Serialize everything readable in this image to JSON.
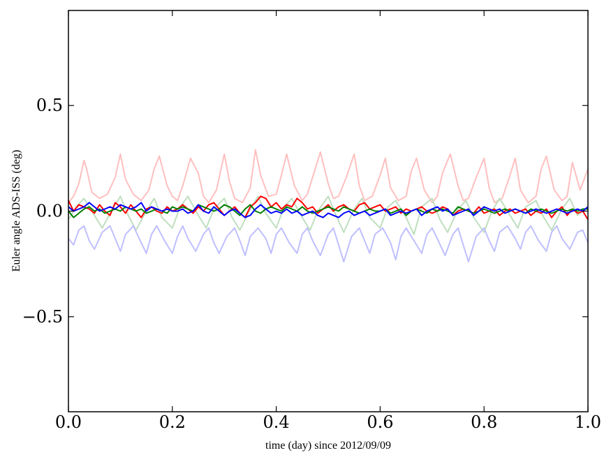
{
  "chart_data": {
    "type": "line",
    "title": "",
    "xlabel": "time (day) since 2012/09/09",
    "ylabel": "Euler angle ADS-ISS (deg)",
    "xlim": [
      0.0,
      1.0
    ],
    "ylim": [
      -0.95,
      0.95
    ],
    "xticks": [
      0.0,
      0.2,
      0.4,
      0.6,
      0.8,
      1.0
    ],
    "xtick_labels": [
      "0.0",
      "0.2",
      "0.4",
      "0.6",
      "0.8",
      "1.0"
    ],
    "yticks": [
      0.5,
      0.0,
      -0.5
    ],
    "ytick_labels": [
      "0.5",
      "0.0",
      "−0.5"
    ],
    "grid": false,
    "legend": "none",
    "series": [
      {
        "color": "#ffbfbf",
        "faded": true,
        "x": [
          0.0,
          0.01,
          0.02,
          0.03,
          0.035,
          0.045,
          0.06,
          0.075,
          0.09,
          0.1,
          0.11,
          0.125,
          0.14,
          0.155,
          0.165,
          0.175,
          0.19,
          0.2,
          0.21,
          0.22,
          0.235,
          0.25,
          0.26,
          0.27,
          0.285,
          0.3,
          0.31,
          0.32,
          0.335,
          0.35,
          0.36,
          0.37,
          0.385,
          0.4,
          0.41,
          0.42,
          0.435,
          0.45,
          0.46,
          0.47,
          0.485,
          0.5,
          0.51,
          0.52,
          0.535,
          0.55,
          0.56,
          0.57,
          0.585,
          0.6,
          0.61,
          0.62,
          0.635,
          0.65,
          0.66,
          0.67,
          0.685,
          0.7,
          0.71,
          0.72,
          0.735,
          0.75,
          0.76,
          0.77,
          0.785,
          0.8,
          0.81,
          0.82,
          0.835,
          0.85,
          0.86,
          0.87,
          0.885,
          0.9,
          0.91,
          0.92,
          0.935,
          0.95,
          0.96,
          0.97,
          0.985,
          1.0
        ],
        "y": [
          0.04,
          0.07,
          0.13,
          0.24,
          0.2,
          0.09,
          0.06,
          0.08,
          0.16,
          0.27,
          0.15,
          0.08,
          0.05,
          0.1,
          0.2,
          0.26,
          0.12,
          0.07,
          0.05,
          0.12,
          0.25,
          0.18,
          0.07,
          0.04,
          0.1,
          0.27,
          0.14,
          0.06,
          0.04,
          0.11,
          0.29,
          0.17,
          0.07,
          0.08,
          0.17,
          0.27,
          0.12,
          0.05,
          0.08,
          0.16,
          0.28,
          0.13,
          0.06,
          0.07,
          0.16,
          0.27,
          0.12,
          0.05,
          0.07,
          0.17,
          0.25,
          0.11,
          0.05,
          0.07,
          0.19,
          0.25,
          0.1,
          0.04,
          0.07,
          0.18,
          0.27,
          0.12,
          0.05,
          0.06,
          0.16,
          0.25,
          0.11,
          0.04,
          0.06,
          0.17,
          0.25,
          0.1,
          0.04,
          0.07,
          0.2,
          0.26,
          0.1,
          0.05,
          0.07,
          0.23,
          0.1,
          0.2
        ]
      },
      {
        "color": "#bfdfbf",
        "faded": true,
        "x": [
          0.0,
          0.015,
          0.03,
          0.05,
          0.065,
          0.085,
          0.1,
          0.115,
          0.13,
          0.15,
          0.165,
          0.18,
          0.2,
          0.215,
          0.23,
          0.25,
          0.265,
          0.28,
          0.3,
          0.315,
          0.33,
          0.35,
          0.365,
          0.38,
          0.4,
          0.415,
          0.43,
          0.45,
          0.465,
          0.48,
          0.5,
          0.515,
          0.53,
          0.55,
          0.565,
          0.58,
          0.6,
          0.615,
          0.63,
          0.65,
          0.665,
          0.68,
          0.7,
          0.715,
          0.73,
          0.75,
          0.765,
          0.78,
          0.8,
          0.815,
          0.83,
          0.85,
          0.865,
          0.88,
          0.9,
          0.915,
          0.93,
          0.95,
          0.965,
          0.98,
          1.0
        ],
        "y": [
          -0.04,
          0.02,
          0.06,
          -0.02,
          -0.08,
          0.01,
          0.07,
          -0.02,
          -0.09,
          0.0,
          0.06,
          -0.03,
          -0.08,
          0.02,
          0.07,
          -0.02,
          -0.08,
          0.01,
          0.06,
          -0.03,
          -0.09,
          0.01,
          0.07,
          -0.01,
          -0.08,
          0.02,
          0.06,
          -0.03,
          -0.09,
          0.0,
          0.07,
          -0.02,
          -0.1,
          0.01,
          0.06,
          -0.03,
          -0.08,
          0.02,
          0.05,
          -0.03,
          -0.11,
          0.02,
          0.06,
          -0.04,
          -0.1,
          0.01,
          0.05,
          -0.03,
          -0.1,
          0.0,
          0.06,
          -0.02,
          -0.08,
          0.02,
          0.05,
          -0.03,
          -0.09,
          0.01,
          0.06,
          -0.02,
          0.02
        ]
      },
      {
        "color": "#bfbfff",
        "faded": true,
        "x": [
          0.0,
          0.01,
          0.02,
          0.03,
          0.04,
          0.05,
          0.065,
          0.08,
          0.09,
          0.1,
          0.11,
          0.125,
          0.14,
          0.15,
          0.16,
          0.17,
          0.185,
          0.2,
          0.21,
          0.22,
          0.23,
          0.245,
          0.26,
          0.27,
          0.28,
          0.29,
          0.305,
          0.32,
          0.33,
          0.34,
          0.35,
          0.365,
          0.38,
          0.39,
          0.4,
          0.41,
          0.425,
          0.44,
          0.45,
          0.46,
          0.47,
          0.485,
          0.5,
          0.51,
          0.52,
          0.53,
          0.545,
          0.56,
          0.57,
          0.58,
          0.59,
          0.605,
          0.62,
          0.63,
          0.64,
          0.65,
          0.665,
          0.68,
          0.69,
          0.7,
          0.71,
          0.725,
          0.74,
          0.75,
          0.76,
          0.77,
          0.785,
          0.8,
          0.81,
          0.82,
          0.83,
          0.845,
          0.86,
          0.87,
          0.88,
          0.89,
          0.905,
          0.92,
          0.93,
          0.94,
          0.95,
          0.965,
          0.98,
          0.99,
          1.0
        ],
        "y": [
          -0.13,
          -0.16,
          -0.09,
          -0.07,
          -0.14,
          -0.18,
          -0.1,
          -0.07,
          -0.13,
          -0.19,
          -0.11,
          -0.07,
          -0.15,
          -0.2,
          -0.11,
          -0.07,
          -0.14,
          -0.2,
          -0.12,
          -0.07,
          -0.13,
          -0.19,
          -0.11,
          -0.08,
          -0.15,
          -0.2,
          -0.12,
          -0.08,
          -0.14,
          -0.21,
          -0.12,
          -0.08,
          -0.13,
          -0.2,
          -0.11,
          -0.08,
          -0.15,
          -0.2,
          -0.11,
          -0.08,
          -0.14,
          -0.21,
          -0.11,
          -0.08,
          -0.16,
          -0.24,
          -0.12,
          -0.08,
          -0.14,
          -0.2,
          -0.11,
          -0.08,
          -0.15,
          -0.23,
          -0.12,
          -0.08,
          -0.14,
          -0.2,
          -0.11,
          -0.08,
          -0.13,
          -0.21,
          -0.11,
          -0.08,
          -0.16,
          -0.24,
          -0.12,
          -0.08,
          -0.14,
          -0.19,
          -0.1,
          -0.07,
          -0.13,
          -0.18,
          -0.1,
          -0.07,
          -0.14,
          -0.19,
          -0.1,
          -0.07,
          -0.13,
          -0.18,
          -0.1,
          -0.09,
          -0.15
        ]
      },
      {
        "color": "#ff0000",
        "faded": false,
        "x": [
          0.0,
          0.01,
          0.02,
          0.03,
          0.04,
          0.05,
          0.06,
          0.07,
          0.08,
          0.09,
          0.1,
          0.11,
          0.12,
          0.13,
          0.14,
          0.15,
          0.16,
          0.17,
          0.18,
          0.19,
          0.2,
          0.21,
          0.22,
          0.23,
          0.24,
          0.25,
          0.26,
          0.27,
          0.28,
          0.29,
          0.3,
          0.31,
          0.32,
          0.33,
          0.34,
          0.35,
          0.36,
          0.37,
          0.38,
          0.39,
          0.4,
          0.41,
          0.42,
          0.43,
          0.44,
          0.45,
          0.46,
          0.47,
          0.48,
          0.49,
          0.5,
          0.51,
          0.52,
          0.53,
          0.54,
          0.55,
          0.56,
          0.57,
          0.58,
          0.59,
          0.6,
          0.61,
          0.62,
          0.63,
          0.64,
          0.65,
          0.66,
          0.67,
          0.68,
          0.69,
          0.7,
          0.71,
          0.72,
          0.73,
          0.74,
          0.75,
          0.76,
          0.77,
          0.78,
          0.79,
          0.8,
          0.81,
          0.82,
          0.83,
          0.84,
          0.85,
          0.86,
          0.87,
          0.88,
          0.89,
          0.9,
          0.91,
          0.92,
          0.93,
          0.94,
          0.95,
          0.96,
          0.97,
          0.98,
          0.99,
          1.0
        ],
        "y": [
          0.05,
          0.0,
          0.03,
          0.02,
          0.01,
          -0.01,
          0.03,
          0.0,
          -0.02,
          0.04,
          0.02,
          -0.01,
          0.03,
          0.0,
          -0.03,
          0.01,
          0.02,
          0.0,
          -0.01,
          0.02,
          0.0,
          0.01,
          0.03,
          0.01,
          -0.01,
          0.02,
          0.0,
          0.03,
          0.04,
          0.01,
          -0.02,
          0.0,
          0.02,
          -0.01,
          -0.03,
          0.02,
          0.04,
          0.07,
          0.06,
          0.02,
          0.04,
          0.01,
          0.03,
          0.02,
          0.06,
          0.04,
          0.01,
          0.02,
          -0.01,
          0.01,
          0.03,
          0.0,
          0.02,
          0.03,
          0.01,
          0.0,
          0.03,
          0.04,
          0.01,
          0.02,
          0.03,
          0.0,
          0.01,
          0.02,
          -0.01,
          0.01,
          0.0,
          0.01,
          0.02,
          0.0,
          -0.01,
          0.0,
          0.02,
          0.01,
          -0.02,
          0.0,
          0.01,
          0.0,
          -0.01,
          0.02,
          -0.01,
          0.0,
          0.01,
          -0.02,
          0.0,
          0.01,
          -0.01,
          0.0,
          0.01,
          -0.02,
          0.0,
          -0.01,
          0.01,
          -0.03,
          0.0,
          0.02,
          -0.02,
          0.01,
          -0.01,
          0.0,
          -0.04
        ]
      },
      {
        "color": "#007f00",
        "faded": false,
        "x": [
          0.0,
          0.01,
          0.02,
          0.03,
          0.04,
          0.05,
          0.06,
          0.07,
          0.08,
          0.09,
          0.1,
          0.11,
          0.12,
          0.13,
          0.14,
          0.15,
          0.16,
          0.17,
          0.18,
          0.19,
          0.2,
          0.21,
          0.22,
          0.23,
          0.24,
          0.25,
          0.26,
          0.27,
          0.28,
          0.29,
          0.3,
          0.31,
          0.32,
          0.33,
          0.34,
          0.35,
          0.36,
          0.37,
          0.38,
          0.39,
          0.4,
          0.41,
          0.42,
          0.43,
          0.44,
          0.45,
          0.46,
          0.47,
          0.48,
          0.49,
          0.5,
          0.51,
          0.52,
          0.53,
          0.54,
          0.55,
          0.56,
          0.57,
          0.58,
          0.59,
          0.6,
          0.61,
          0.62,
          0.63,
          0.64,
          0.65,
          0.66,
          0.67,
          0.68,
          0.69,
          0.7,
          0.71,
          0.72,
          0.73,
          0.74,
          0.75,
          0.76,
          0.77,
          0.78,
          0.79,
          0.8,
          0.81,
          0.82,
          0.83,
          0.84,
          0.85,
          0.86,
          0.87,
          0.88,
          0.89,
          0.9,
          0.91,
          0.92,
          0.93,
          0.94,
          0.95,
          0.96,
          0.97,
          0.98,
          0.99,
          1.0
        ],
        "y": [
          0.0,
          -0.03,
          -0.01,
          0.01,
          0.02,
          0.0,
          0.01,
          -0.01,
          0.0,
          0.01,
          0.0,
          0.02,
          0.01,
          0.0,
          0.01,
          -0.01,
          0.0,
          0.01,
          0.0,
          -0.01,
          0.02,
          0.01,
          0.02,
          0.01,
          0.0,
          0.03,
          0.02,
          0.01,
          0.0,
          0.01,
          0.03,
          0.02,
          0.0,
          -0.02,
          0.01,
          0.03,
          0.0,
          -0.01,
          0.01,
          0.02,
          0.01,
          0.0,
          0.02,
          0.01,
          0.0,
          0.02,
          0.0,
          -0.01,
          0.0,
          0.01,
          0.02,
          0.01,
          0.0,
          0.02,
          0.01,
          0.0,
          -0.01,
          0.0,
          0.01,
          0.0,
          0.0,
          0.01,
          -0.01,
          0.0,
          0.01,
          -0.02,
          0.0,
          0.01,
          0.0,
          -0.01,
          0.01,
          0.0,
          0.01,
          0.0,
          -0.01,
          0.02,
          0.01,
          0.0,
          -0.01,
          0.0,
          0.01,
          0.0,
          -0.01,
          0.0,
          0.01,
          0.0,
          0.01,
          0.0,
          -0.01,
          0.01,
          0.0,
          0.01,
          0.0,
          -0.01,
          0.0,
          0.01,
          0.0,
          0.01,
          0.0,
          0.01,
          0.01
        ]
      },
      {
        "color": "#0000ff",
        "faded": false,
        "x": [
          0.0,
          0.01,
          0.02,
          0.03,
          0.04,
          0.05,
          0.06,
          0.07,
          0.08,
          0.09,
          0.1,
          0.11,
          0.12,
          0.13,
          0.14,
          0.15,
          0.16,
          0.17,
          0.18,
          0.19,
          0.2,
          0.21,
          0.22,
          0.23,
          0.24,
          0.25,
          0.26,
          0.27,
          0.28,
          0.29,
          0.3,
          0.31,
          0.32,
          0.33,
          0.34,
          0.35,
          0.36,
          0.37,
          0.38,
          0.39,
          0.4,
          0.41,
          0.42,
          0.43,
          0.44,
          0.45,
          0.46,
          0.47,
          0.48,
          0.49,
          0.5,
          0.51,
          0.52,
          0.53,
          0.54,
          0.55,
          0.56,
          0.57,
          0.58,
          0.59,
          0.6,
          0.61,
          0.62,
          0.63,
          0.64,
          0.65,
          0.66,
          0.67,
          0.68,
          0.69,
          0.7,
          0.71,
          0.72,
          0.73,
          0.74,
          0.75,
          0.76,
          0.77,
          0.78,
          0.79,
          0.8,
          0.81,
          0.82,
          0.83,
          0.84,
          0.85,
          0.86,
          0.87,
          0.88,
          0.89,
          0.9,
          0.91,
          0.92,
          0.93,
          0.94,
          0.95,
          0.96,
          0.97,
          0.98,
          0.99,
          1.0
        ],
        "y": [
          0.02,
          0.0,
          0.01,
          0.02,
          0.04,
          0.02,
          0.0,
          0.01,
          0.02,
          0.01,
          0.03,
          0.02,
          0.01,
          0.02,
          0.04,
          0.0,
          0.02,
          0.01,
          0.0,
          0.01,
          0.0,
          0.0,
          0.01,
          -0.01,
          0.0,
          0.03,
          0.0,
          -0.01,
          0.02,
          0.0,
          -0.02,
          0.0,
          0.01,
          -0.01,
          -0.03,
          -0.02,
          0.01,
          0.03,
          0.01,
          -0.01,
          0.0,
          -0.01,
          0.01,
          -0.01,
          0.0,
          -0.02,
          -0.01,
          0.0,
          -0.02,
          -0.03,
          -0.01,
          -0.02,
          -0.03,
          -0.01,
          0.0,
          -0.02,
          -0.01,
          0.0,
          -0.02,
          -0.01,
          0.0,
          0.01,
          -0.02,
          -0.01,
          0.0,
          -0.01,
          0.0,
          0.01,
          -0.02,
          0.0,
          0.01,
          0.02,
          0.0,
          0.01,
          -0.02,
          -0.01,
          0.0,
          0.01,
          -0.02,
          0.0,
          0.02,
          0.01,
          0.0,
          0.01,
          -0.01,
          0.0,
          0.01,
          0.0,
          -0.01,
          0.0,
          0.01,
          0.0,
          -0.01,
          0.0,
          0.01,
          0.0,
          -0.01,
          0.0,
          0.01,
          0.0,
          0.02
        ]
      }
    ]
  }
}
